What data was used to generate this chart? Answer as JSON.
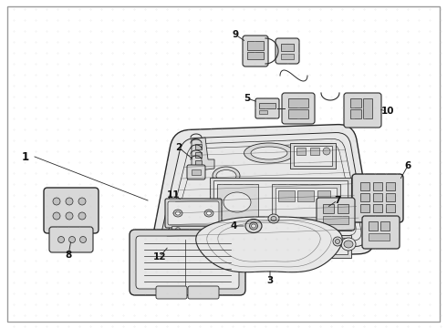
{
  "bg_color": "#f2f2f2",
  "inner_bg": "#f8f8f8",
  "border_color": "#999999",
  "line_color": "#2a2a2a",
  "fill_light": "#e8e8e8",
  "fill_mid": "#d8d8d8",
  "fill_dark": "#c0c0c0",
  "text_color": "#111111",
  "figw": 4.9,
  "figh": 3.6,
  "dpi": 100,
  "label_fs": 7.5,
  "label_fw": "bold"
}
